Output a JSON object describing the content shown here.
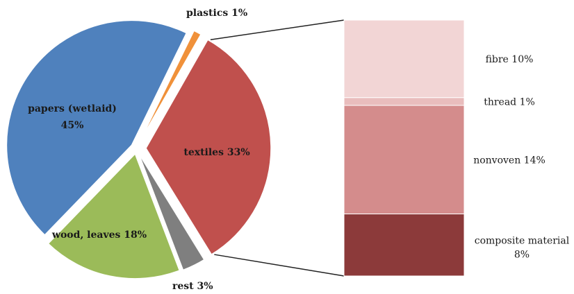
{
  "chart_data": {
    "type": "bar-of-pie",
    "title": "",
    "pie": {
      "slices": [
        {
          "label": "plastics 1%",
          "value": 1,
          "color": "#f0913a"
        },
        {
          "label": "textiles 33%",
          "value": 33,
          "color": "#c0504d",
          "expanded": true
        },
        {
          "label": "rest  3%",
          "value": 3,
          "color": "#7f7f7f"
        },
        {
          "label": "wood, leaves 18%",
          "value": 18,
          "color": "#9bbb59"
        },
        {
          "label": "papers (wetlaid)",
          "label_value": "45%",
          "value": 45,
          "color": "#4f81bd"
        }
      ]
    },
    "bar": {
      "parent": "textiles 33%",
      "segments": [
        {
          "label": "fibre 10%",
          "value": 10,
          "color": "#f2d5d5"
        },
        {
          "label": "thread 1%",
          "value": 1,
          "color": "#e9bdbd"
        },
        {
          "label": "nonvoven 14%",
          "value": 14,
          "color": "#d48c8c"
        },
        {
          "label": "composite material",
          "label_value": "8%",
          "value": 8,
          "color": "#8c3a3a"
        }
      ]
    }
  }
}
